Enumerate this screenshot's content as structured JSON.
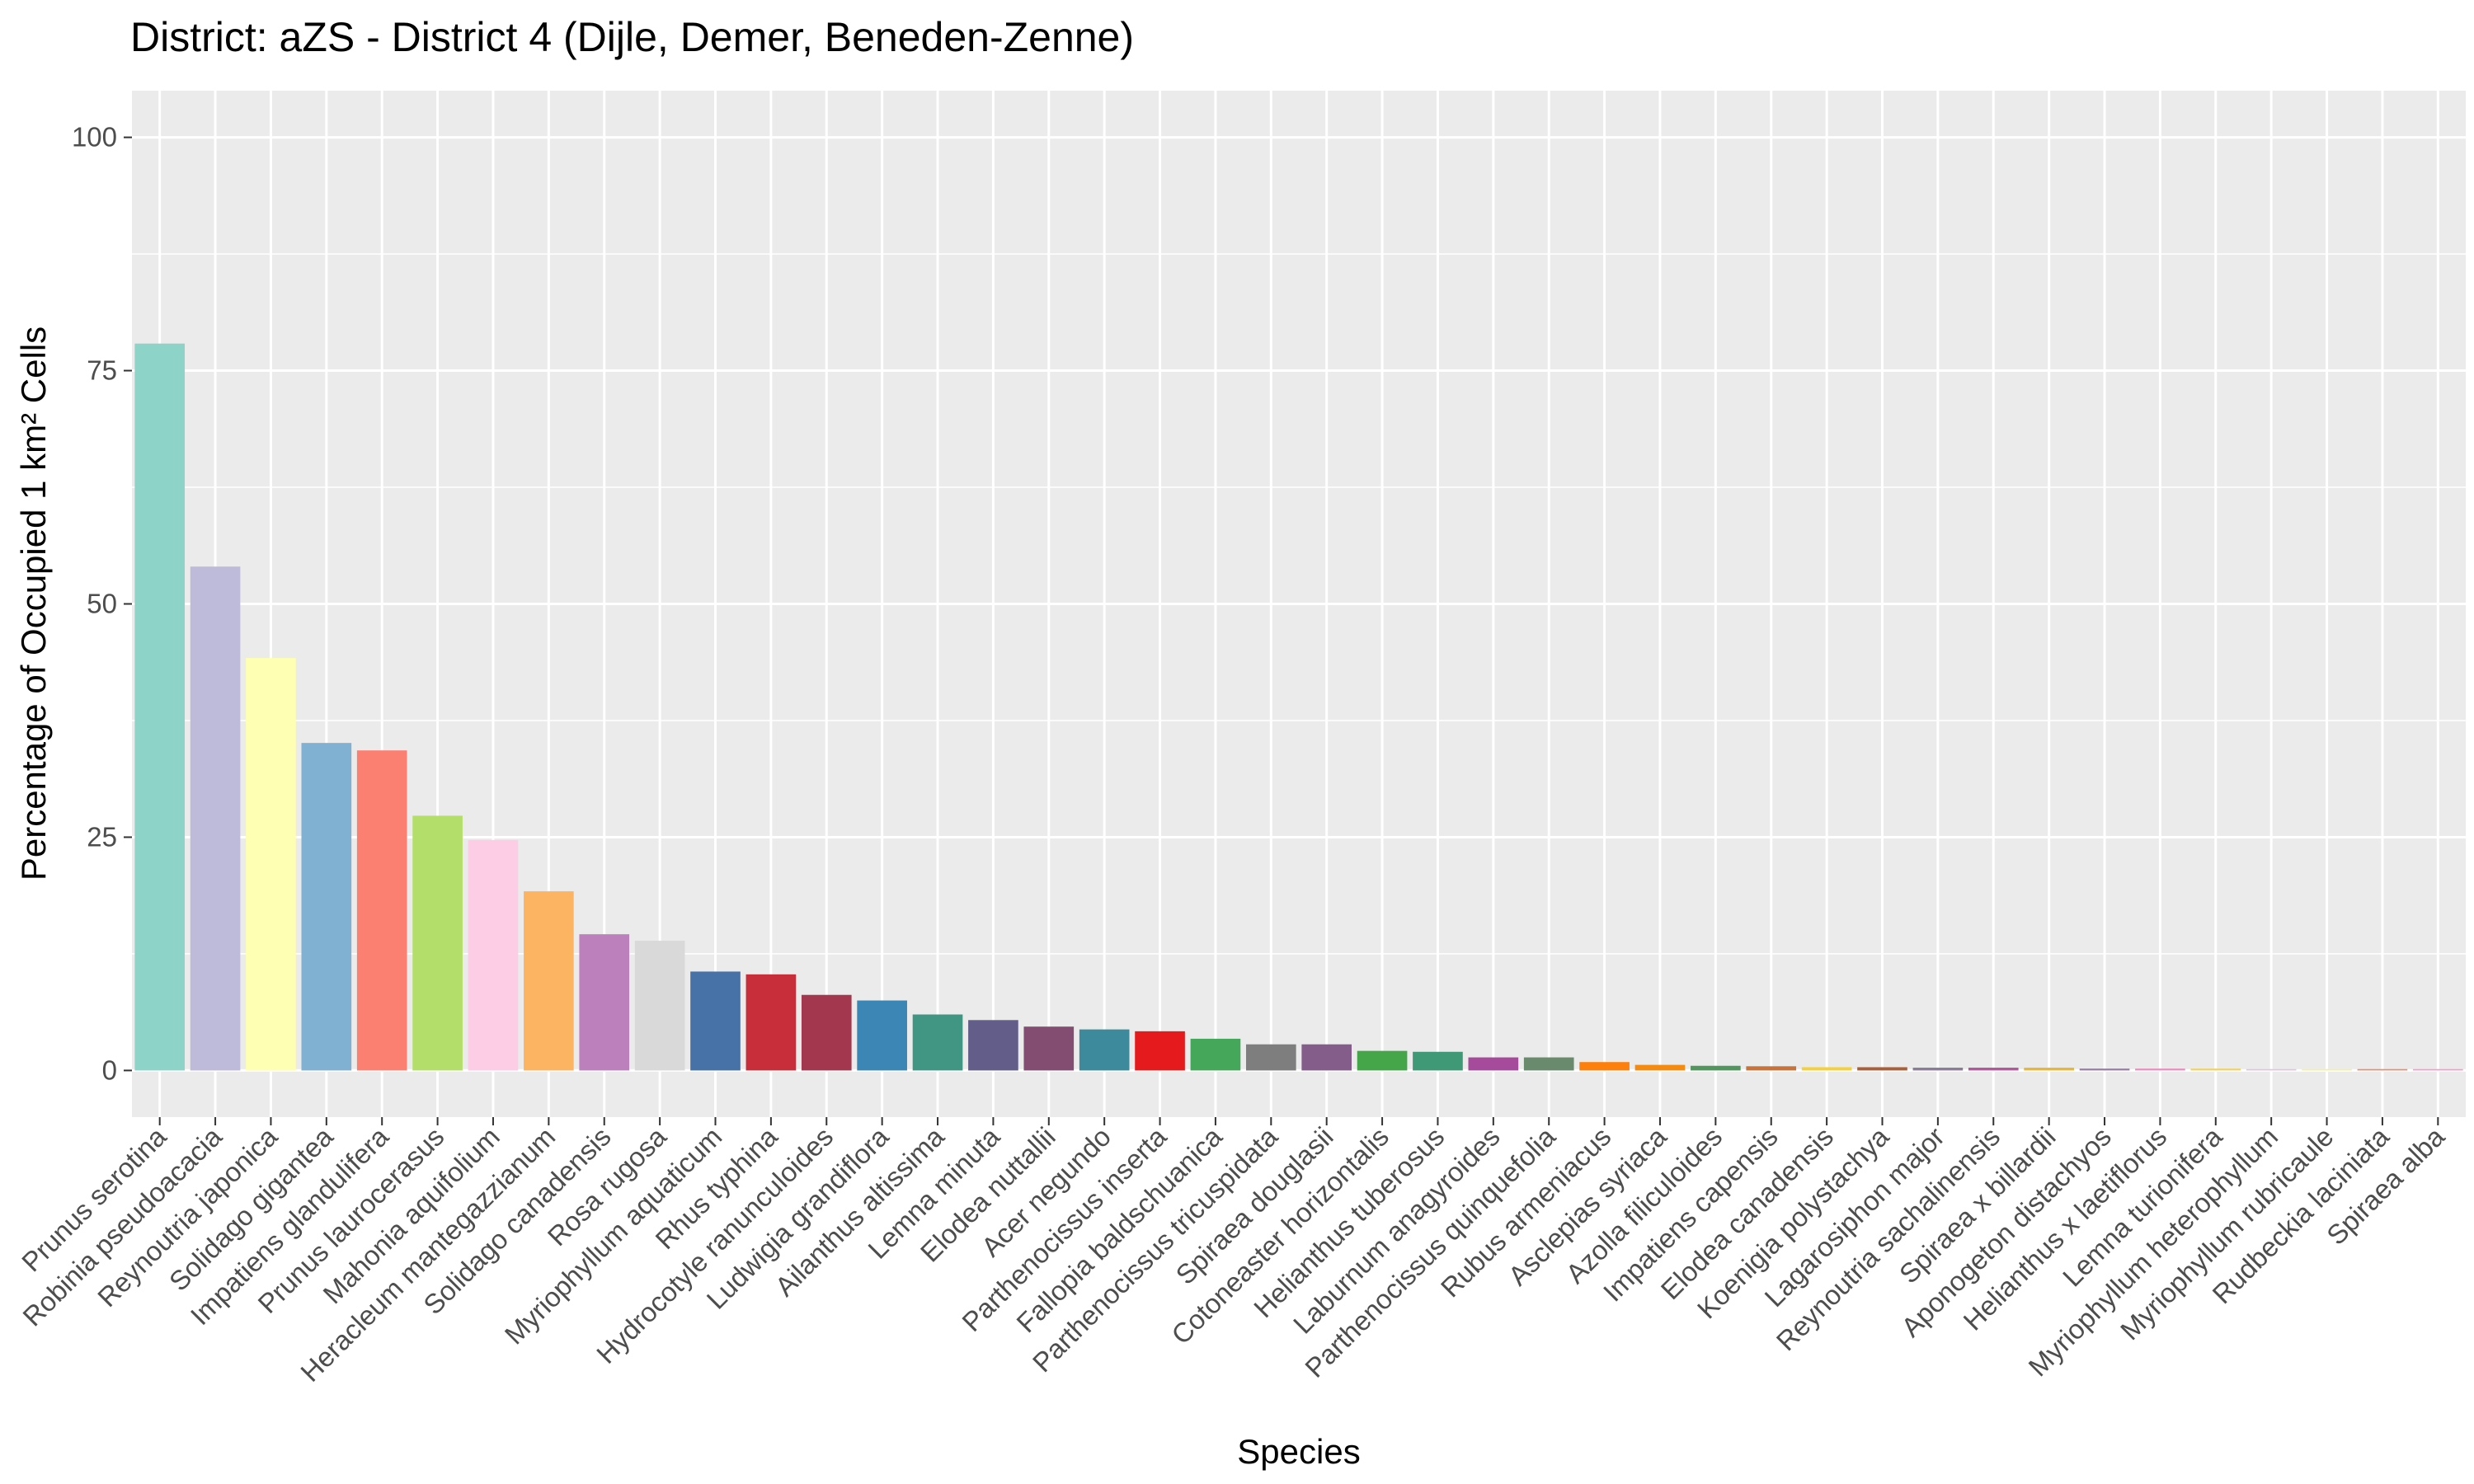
{
  "chart_data": {
    "type": "bar",
    "title": "District: aZS - District 4 (Dijle, Demer, Beneden-Zenne)",
    "xlabel": "Species",
    "ylabel": "Percentage of Occupied 1 km² Cells",
    "ylim": [
      -5,
      105
    ],
    "yticks": [
      0,
      25,
      50,
      75,
      100
    ],
    "yticks_labels": [
      "0",
      "25",
      "50",
      "75",
      "100"
    ],
    "grid": true,
    "legend": "none",
    "panel_background": "#EBEBEB",
    "grid_color": "#FFFFFF",
    "categories": [
      "Prunus serotina",
      "Robinia pseudoacacia",
      "Reynoutria japonica",
      "Solidago gigantea",
      "Impatiens glandulifera",
      "Prunus laurocerasus",
      "Mahonia aquifolium",
      "Heracleum mantegazzianum",
      "Solidago canadensis",
      "Rosa rugosa",
      "Myriophyllum aquaticum",
      "Rhus typhina",
      "Hydrocotyle ranunculoides",
      "Ludwigia grandiflora",
      "Ailanthus altissima",
      "Lemna minuta",
      "Elodea nuttallii",
      "Acer negundo",
      "Parthenocissus inserta",
      "Fallopia baldschuanica",
      "Parthenocissus tricuspidata",
      "Spiraea douglasii",
      "Cotoneaster horizontalis",
      "Helianthus tuberosus",
      "Laburnum anagyroides",
      "Parthenocissus quinquefolia",
      "Rubus armeniacus",
      "Asclepias syriaca",
      "Azolla filiculoides",
      "Impatiens capensis",
      "Elodea canadensis",
      "Koenigia polystachya",
      "Lagarosiphon major",
      "Reynoutria sachalinensis",
      "Spiraea x billardii",
      "Aponogeton distachyos",
      "Helianthus x laetiflorus",
      "Lemna turionifera",
      "Myriophyllum heterophyllum",
      "Myriophyllum rubricaule",
      "Rudbeckia laciniata",
      "Spiraea alba"
    ],
    "values": [
      77.9,
      54.0,
      44.2,
      35.1,
      34.3,
      27.3,
      24.7,
      19.2,
      14.6,
      13.9,
      10.6,
      10.3,
      8.1,
      7.5,
      6.0,
      5.4,
      4.7,
      4.4,
      4.2,
      3.4,
      2.8,
      2.8,
      2.1,
      2.0,
      1.4,
      1.4,
      0.9,
      0.6,
      0.5,
      0.45,
      0.35,
      0.35,
      0.3,
      0.3,
      0.3,
      0.2,
      0.2,
      0.2,
      0.15,
      0.15,
      0.15,
      0.15
    ],
    "colors": [
      "#8DD3C7",
      "#BEBADA",
      "#FFFFB3",
      "#80B1D3",
      "#FB8072",
      "#B3DE69",
      "#FCCDE5",
      "#FDB462",
      "#BC80BD",
      "#D9D9D9",
      "#4672A7",
      "#C72E3A",
      "#A3374D",
      "#3B86B5",
      "#419683",
      "#625E89",
      "#834D71",
      "#3C8A9B",
      "#E41A1C",
      "#45A759",
      "#7E7E7E",
      "#845D8B",
      "#44A648",
      "#3F9876",
      "#A64A9C",
      "#6A8A6E",
      "#FD7F0C",
      "#F48B10",
      "#53965D",
      "#C7733B",
      "#F5D03B",
      "#A85F3A",
      "#8B7D9A",
      "#B4579C",
      "#E6B73A",
      "#967FA1",
      "#E88FBE",
      "#F0D26B",
      "#DDC4DF",
      "#F4EE9E",
      "#E88C70",
      "#F79AC6"
    ]
  }
}
